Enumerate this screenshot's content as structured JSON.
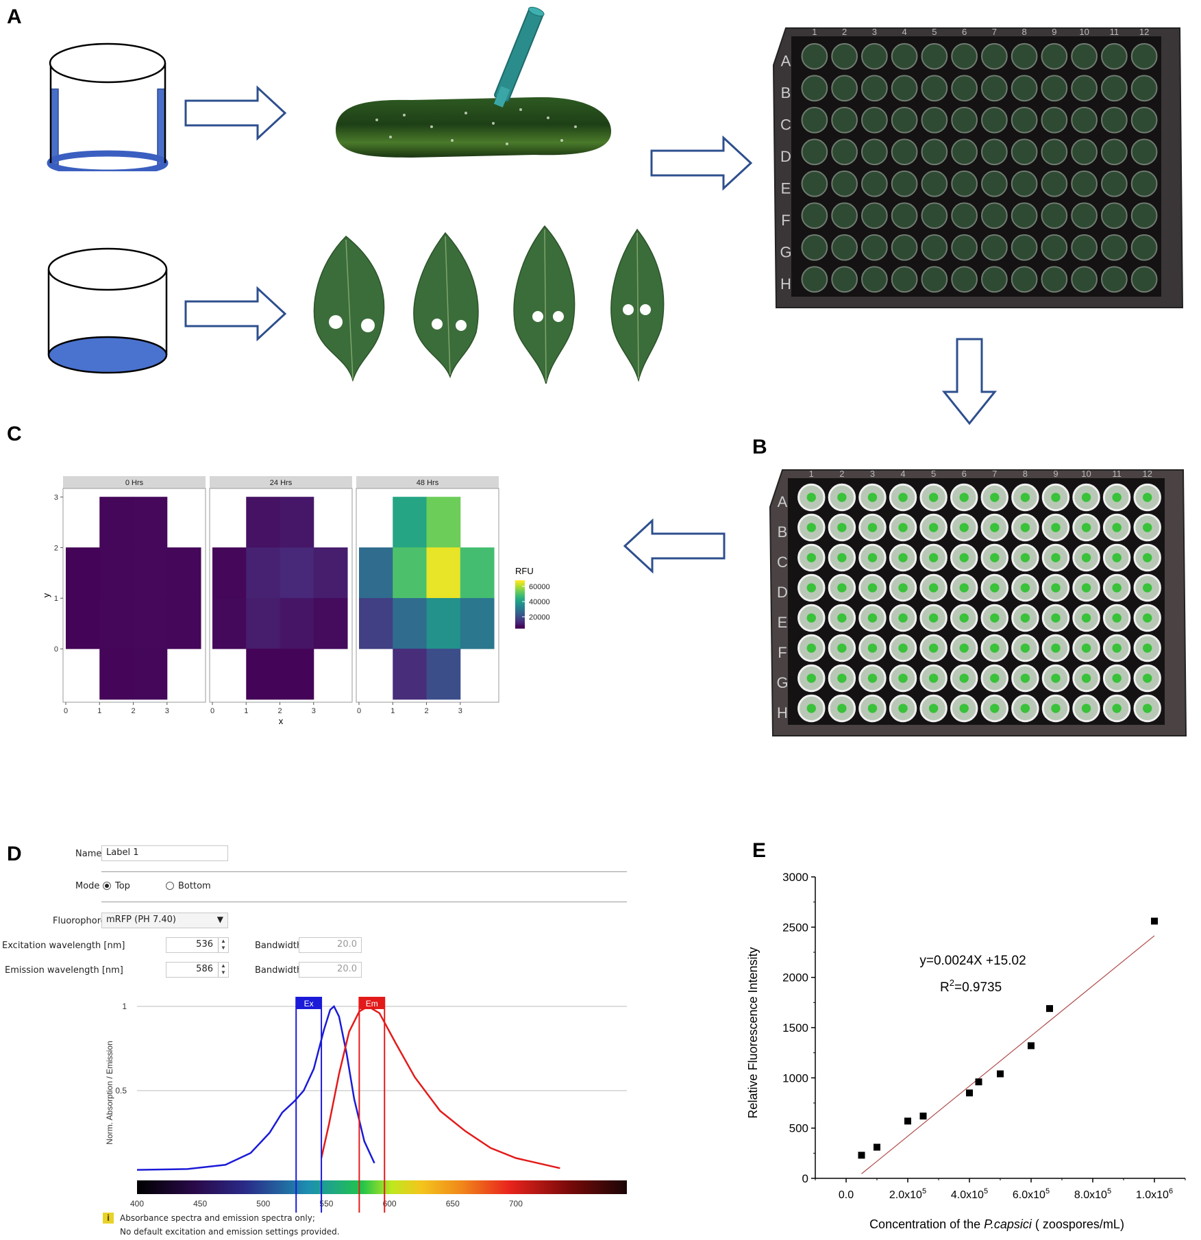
{
  "panels": {
    "A": "A",
    "B": "B",
    "C": "C",
    "D": "D",
    "E": "E"
  },
  "plate": {
    "cols": [
      "1",
      "2",
      "3",
      "4",
      "5",
      "6",
      "7",
      "8",
      "9",
      "10",
      "11",
      "12"
    ],
    "rows": [
      "A",
      "B",
      "C",
      "D",
      "E",
      "F",
      "G",
      "H"
    ]
  },
  "heatmap": {
    "facets": [
      "0 Hrs",
      "24 Hrs",
      "48 Hrs"
    ],
    "xlabel": "x",
    "ylabel": "y",
    "x_ticks": [
      "0",
      "1",
      "2",
      "3"
    ],
    "y_ticks": [
      "0",
      "1",
      "2",
      "3"
    ],
    "legend_title": "RFU",
    "legend_ticks": [
      "60000",
      "40000",
      "20000"
    ],
    "legend_values": [
      60000,
      40000,
      20000
    ],
    "color_range": [
      5000,
      68000
    ],
    "cells": [
      [
        [
          1,
          3,
          6000
        ],
        [
          2,
          3,
          6200
        ],
        [
          0,
          2,
          5500
        ],
        [
          1,
          2,
          6100
        ],
        [
          2,
          2,
          6300
        ],
        [
          3,
          2,
          6000
        ],
        [
          0,
          1,
          5800
        ],
        [
          1,
          1,
          6000
        ],
        [
          2,
          1,
          6200
        ],
        [
          3,
          1,
          6000
        ],
        [
          1,
          0,
          5900
        ],
        [
          2,
          0,
          6100
        ]
      ],
      [
        [
          1,
          3,
          8000
        ],
        [
          2,
          3,
          9000
        ],
        [
          0,
          2,
          6000
        ],
        [
          1,
          2,
          11000
        ],
        [
          2,
          2,
          12000
        ],
        [
          3,
          2,
          10000
        ],
        [
          0,
          1,
          6500
        ],
        [
          1,
          1,
          10000
        ],
        [
          2,
          1,
          8500
        ],
        [
          3,
          1,
          7000
        ],
        [
          1,
          0,
          5500
        ],
        [
          2,
          0,
          5800
        ]
      ],
      [
        [
          1,
          3,
          42000
        ],
        [
          2,
          3,
          54000
        ],
        [
          0,
          2,
          27000
        ],
        [
          1,
          2,
          50000
        ],
        [
          2,
          2,
          66000
        ],
        [
          3,
          2,
          49000
        ],
        [
          0,
          1,
          17000
        ],
        [
          1,
          1,
          27000
        ],
        [
          2,
          1,
          37000
        ],
        [
          3,
          1,
          30000
        ],
        [
          1,
          0,
          13000
        ],
        [
          2,
          0,
          20000
        ]
      ]
    ]
  },
  "settings": {
    "name_label": "Name",
    "name_value": "Label 1",
    "mode_label": "Mode",
    "mode_top": "Top",
    "mode_bottom": "Bottom",
    "fluorophore_label": "Fluorophore",
    "fluorophore_value": "mRFP (PH 7.40)",
    "excitation_label": "Excitation wavelength [nm]",
    "excitation_value": "536",
    "emission_label": "Emission wavelength [nm]",
    "emission_value": "586",
    "bandwidth_label": "Bandwidth",
    "ex_bandwidth": "20.0",
    "em_bandwidth": "20.0",
    "spectrum_ylabel": "Norm. Absorption / Emission",
    "y_ticks": [
      "1",
      "0.5"
    ],
    "wl_ticks": [
      "400",
      "450",
      "500",
      "550",
      "600",
      "650",
      "700"
    ],
    "ex_tag": "Ex",
    "em_tag": "Em",
    "note_icon": "i",
    "note_line1": "Absorbance spectra and emission spectra only;",
    "note_line2": "No default excitation and emission settings provided."
  },
  "chart_data": {
    "type": "scatter",
    "title": "",
    "xlabel_prefix": "Concentration of the ",
    "xlabel_species": "P.capsici",
    "xlabel_suffix": " ( zoospores/mL)",
    "ylabel": "Relative Fluorescence Intensity",
    "equation": "y=0.0024X +15.02",
    "r2_base": "R",
    "r2_exp": "2",
    "r2_value": "=0.9735",
    "xlim": [
      -100000,
      1100000
    ],
    "ylim": [
      0,
      3000
    ],
    "x_tick_values": [
      0,
      200000,
      400000,
      600000,
      800000,
      1000000
    ],
    "x_tick_mantissa": [
      "0.0",
      "2.0x10",
      "4.0x10",
      "6.0x10",
      "8.0x10",
      "1.0x10"
    ],
    "x_tick_exp": [
      "",
      "5",
      "5",
      "5",
      "5",
      "6"
    ],
    "y_ticks": [
      0,
      500,
      1000,
      1500,
      2000,
      2500,
      3000
    ],
    "points": [
      {
        "x": 50000,
        "y": 230
      },
      {
        "x": 100000,
        "y": 310
      },
      {
        "x": 200000,
        "y": 570
      },
      {
        "x": 250000,
        "y": 620
      },
      {
        "x": 400000,
        "y": 850
      },
      {
        "x": 430000,
        "y": 960
      },
      {
        "x": 500000,
        "y": 1040
      },
      {
        "x": 600000,
        "y": 1320
      },
      {
        "x": 660000,
        "y": 1690
      },
      {
        "x": 1000000,
        "y": 2560
      }
    ],
    "fit": {
      "slope": 0.0024,
      "intercept": 15.02
    }
  }
}
